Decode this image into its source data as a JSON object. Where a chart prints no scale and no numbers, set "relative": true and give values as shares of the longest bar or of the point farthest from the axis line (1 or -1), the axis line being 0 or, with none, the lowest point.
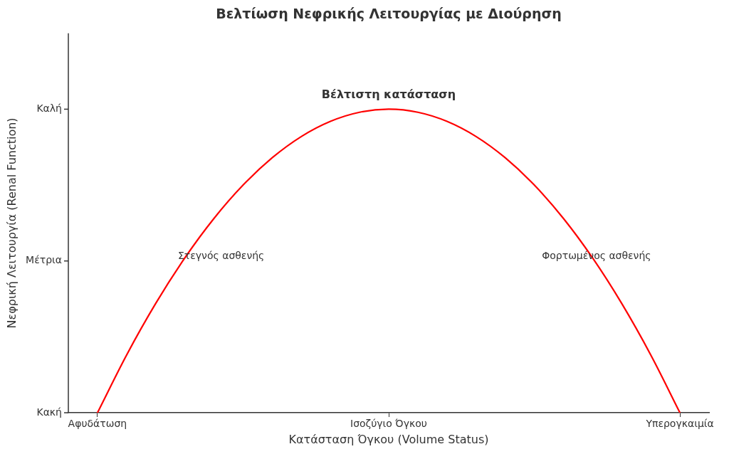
{
  "chart_data": {
    "type": "line",
    "title": "Βελτίωση Νεφρικής Λειτουργίας με Διούρηση",
    "xlabel": "Κατάσταση Όγκου (Volume Status)",
    "ylabel": "Νεφρική Λειτουργία (Renal Function)",
    "categories": [
      null,
      "Αφυδάτωση",
      null,
      null,
      null,
      null,
      null,
      null,
      null,
      null,
      null,
      "Ισοζύγιο Όγκου",
      null,
      null,
      null,
      null,
      null,
      null,
      null,
      null,
      null,
      "Υπερογκαιμία",
      null
    ],
    "series": [
      {
        "color": "#ff0000",
        "values": [
          null,
          0,
          0.19,
          0.36,
          0.51,
          0.64,
          0.75,
          0.84,
          0.91,
          0.96,
          0.99,
          1,
          0.99,
          0.96,
          0.91,
          0.84,
          0.75,
          0.64,
          0.51,
          0.36,
          0.19,
          0,
          null
        ]
      }
    ],
    "relative": true,
    "annotations": [
      "Βέλτιστη κατάσταση",
      "Στεγνός ασθενής",
      "Φορτωμένος ασθενής",
      "Κακή",
      "Μέτρια",
      "Καλή"
    ],
    "legend": false,
    "marker": "none",
    "line_style": "solid"
  }
}
